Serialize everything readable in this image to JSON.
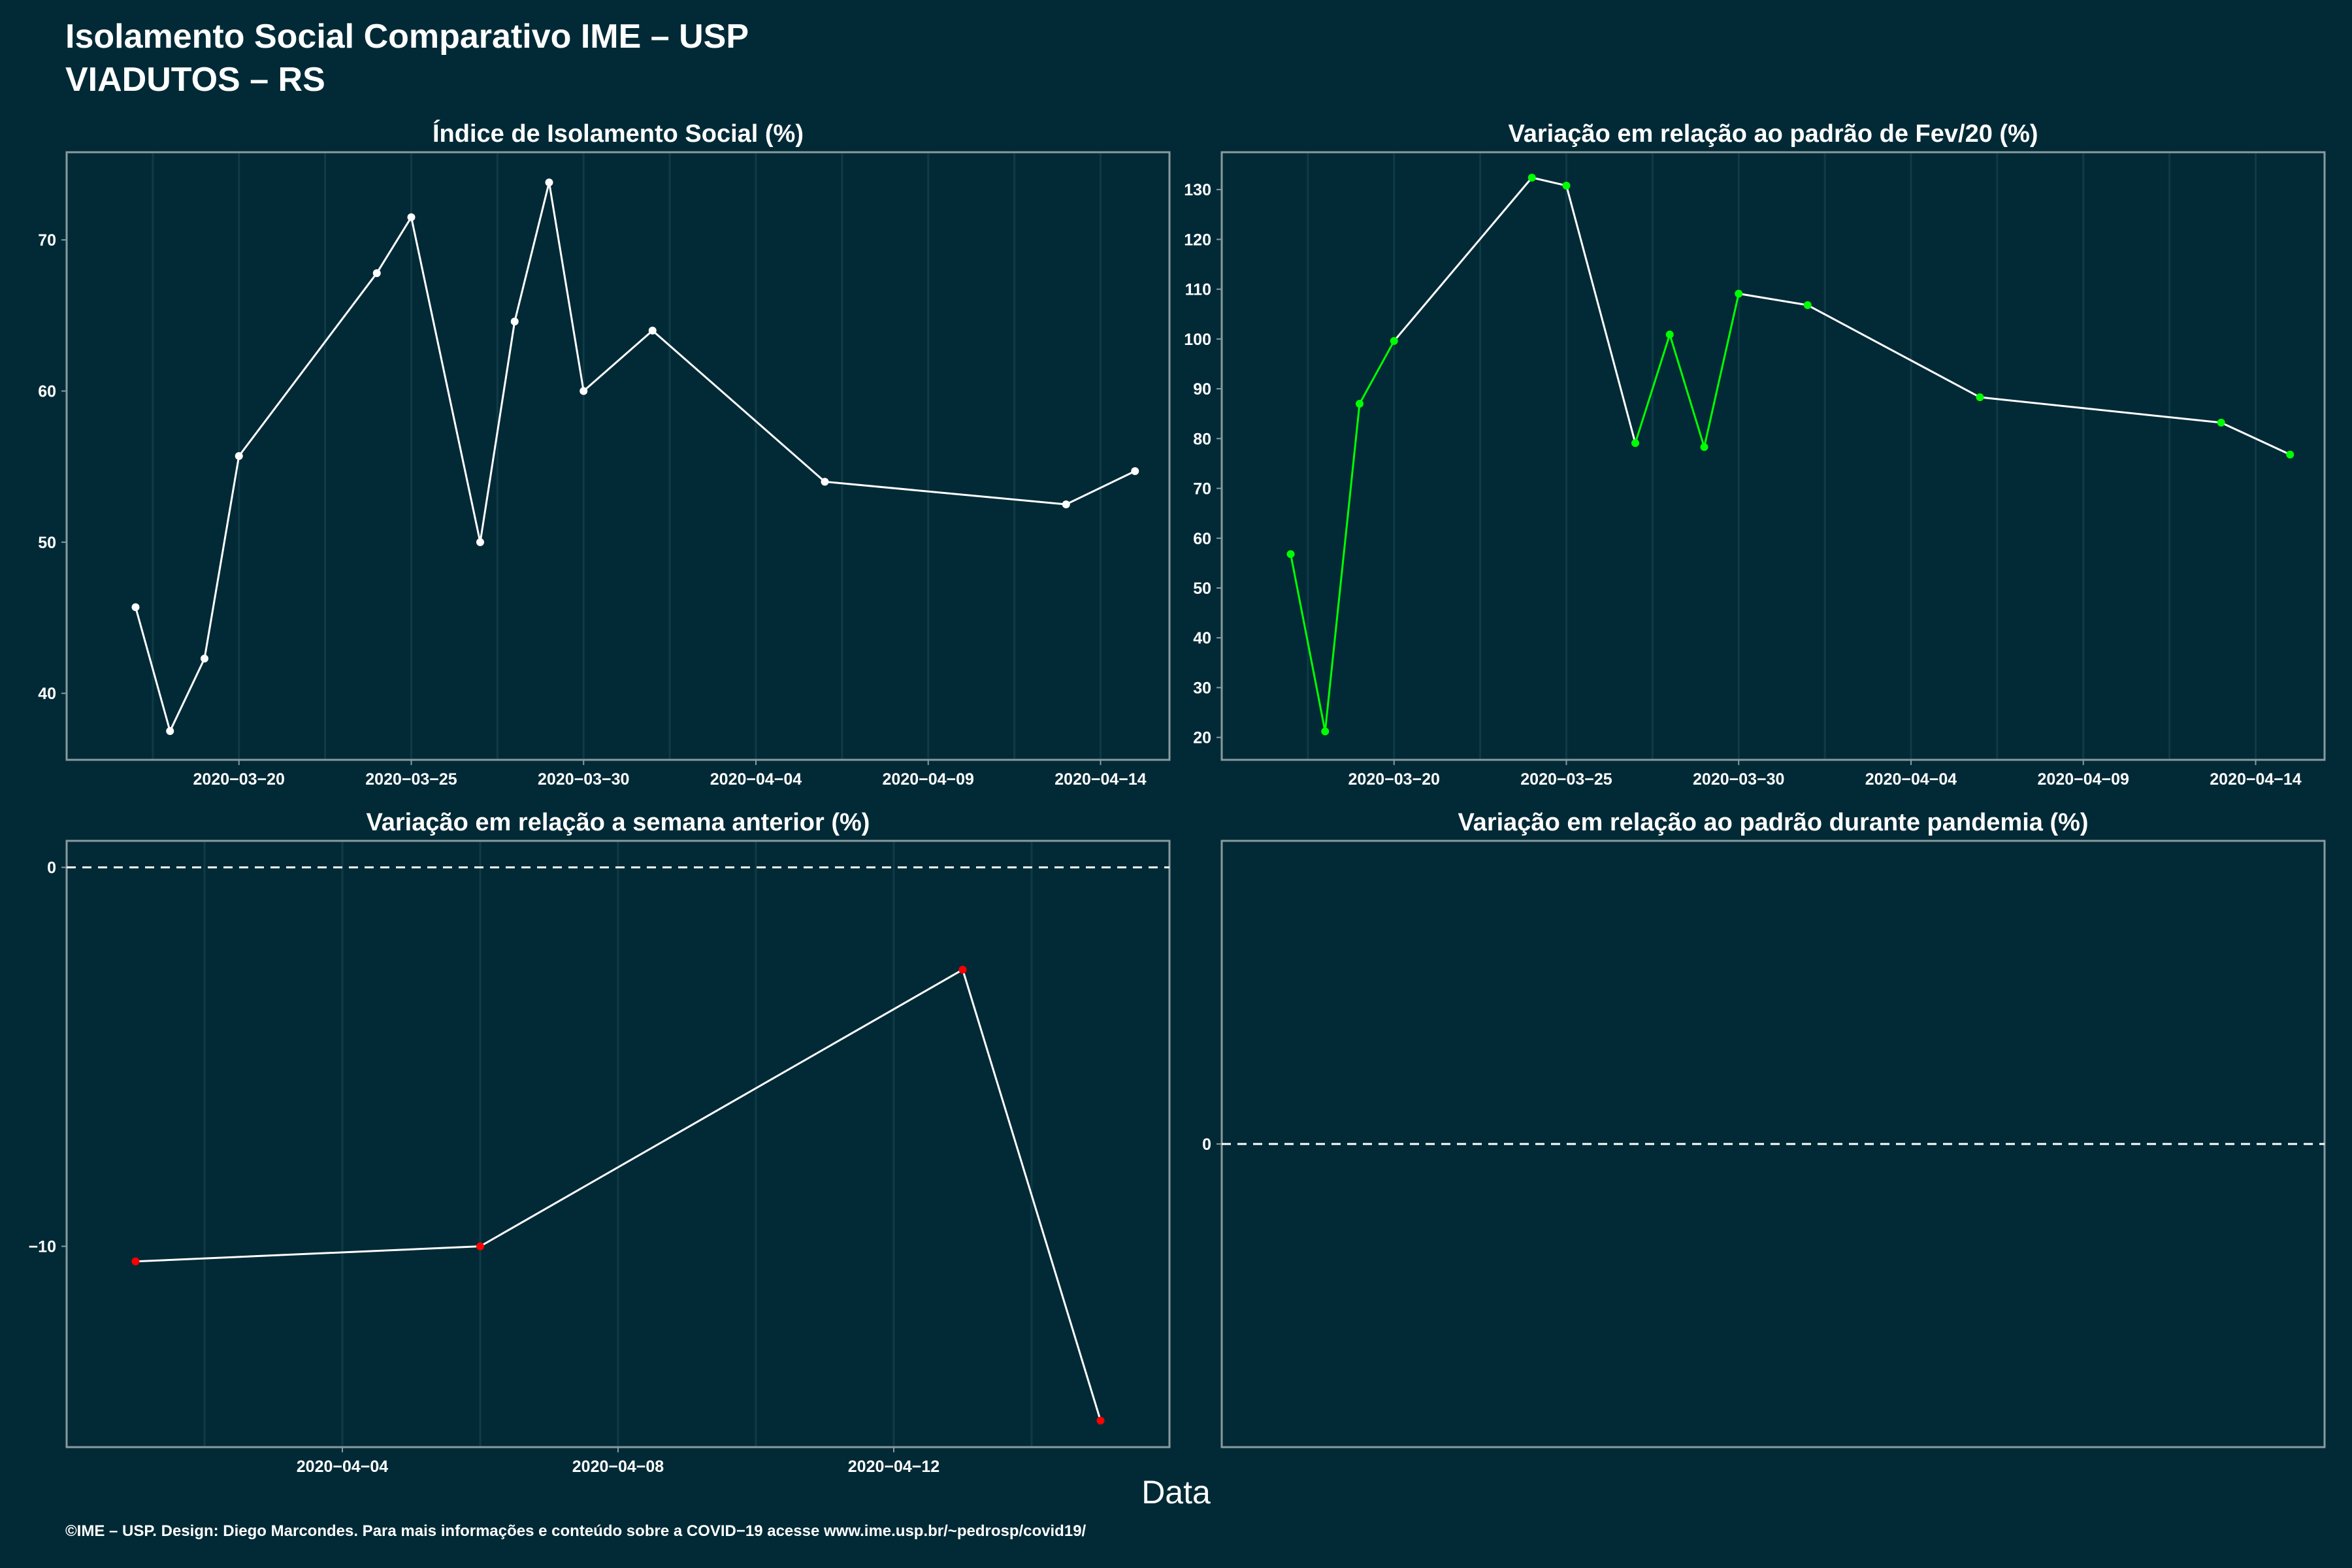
{
  "header": {
    "title_line1": "Isolamento Social Comparativo IME – USP",
    "title_line2": "VIADUTOS – RS"
  },
  "xaxis_title": "Data",
  "footer": "©IME – USP. Design: Diego Marcondes. Para mais informações e conteúdo sobre a COVID−19 acesse www.ime.usp.br/~pedrosp/covid19/",
  "colors": {
    "background": "#012a36",
    "line": "#ffffff",
    "points_isolation": "#ffffff",
    "green": "#00ff00",
    "red": "#ff0000",
    "panel_border": "#8a9a9f",
    "grid": "#0f3a46"
  },
  "chart_data": [
    {
      "id": "isolamento",
      "type": "line",
      "title": "Índice de Isolamento Social (%)",
      "xlabel": "",
      "ylabel": "",
      "x_type": "date",
      "x_ticks": [
        "2020-03-20",
        "2020-03-25",
        "2020-03-30",
        "2020-04-04",
        "2020-04-09",
        "2020-04-14"
      ],
      "y_ticks": [
        40,
        50,
        60,
        70
      ],
      "xlim": [
        "2020-03-15",
        "2020-04-16"
      ],
      "ylim": [
        35.6,
        75.8
      ],
      "grid": true,
      "series": [
        {
          "color": "#ffffff",
          "points": [
            {
              "x": "2020-03-17",
              "y": 45.7
            },
            {
              "x": "2020-03-18",
              "y": 37.5
            },
            {
              "x": "2020-03-19",
              "y": 42.3
            },
            {
              "x": "2020-03-20",
              "y": 55.7
            },
            {
              "x": "2020-03-24",
              "y": 67.8
            },
            {
              "x": "2020-03-25",
              "y": 71.5
            },
            {
              "x": "2020-03-27",
              "y": 50.0
            },
            {
              "x": "2020-03-28",
              "y": 64.6
            },
            {
              "x": "2020-03-29",
              "y": 73.8
            },
            {
              "x": "2020-03-30",
              "y": 60.0
            },
            {
              "x": "2020-04-01",
              "y": 64.0
            },
            {
              "x": "2020-04-06",
              "y": 54.0
            },
            {
              "x": "2020-04-13",
              "y": 52.5
            },
            {
              "x": "2020-04-15",
              "y": 54.7
            }
          ]
        }
      ]
    },
    {
      "id": "fev20",
      "type": "line",
      "title": "Variação em relação ao padrão de Fev/20 (%)",
      "xlabel": "",
      "ylabel": "",
      "x_type": "date",
      "x_ticks": [
        "2020-03-20",
        "2020-03-25",
        "2020-03-30",
        "2020-04-04",
        "2020-04-09",
        "2020-04-14"
      ],
      "y_ticks": [
        20,
        30,
        40,
        50,
        60,
        70,
        80,
        90,
        100,
        110,
        120,
        130
      ],
      "xlim": [
        "2020-03-15",
        "2020-04-16"
      ],
      "ylim": [
        15.5,
        137.5
      ],
      "grid": true,
      "segment_colors": [
        "#00ff00",
        "#00ff00",
        "#00ff00",
        "#ffffff",
        "#ffffff",
        "#ffffff",
        "#00ff00",
        "#00ff00",
        "#00ff00",
        "#ffffff",
        "#ffffff",
        "#ffffff",
        "#ffffff"
      ],
      "series": [
        {
          "color": "#00ff00",
          "points": [
            {
              "x": "2020-03-17",
              "y": 56.8
            },
            {
              "x": "2020-03-18",
              "y": 21.2
            },
            {
              "x": "2020-03-19",
              "y": 87.0
            },
            {
              "x": "2020-03-20",
              "y": 99.6
            },
            {
              "x": "2020-03-24",
              "y": 132.4
            },
            {
              "x": "2020-03-25",
              "y": 130.8
            },
            {
              "x": "2020-03-27",
              "y": 79.1
            },
            {
              "x": "2020-03-28",
              "y": 100.9
            },
            {
              "x": "2020-03-29",
              "y": 78.3
            },
            {
              "x": "2020-03-30",
              "y": 109.1
            },
            {
              "x": "2020-04-01",
              "y": 106.8
            },
            {
              "x": "2020-04-06",
              "y": 88.3
            },
            {
              "x": "2020-04-13",
              "y": 83.2
            },
            {
              "x": "2020-04-15",
              "y": 76.8
            }
          ]
        }
      ]
    },
    {
      "id": "semana",
      "type": "line",
      "title": "Variação em relação a semana anterior (%)",
      "xlabel": "",
      "ylabel": "",
      "x_type": "date",
      "x_ticks": [
        "2020-04-04",
        "2020-04-08",
        "2020-04-12"
      ],
      "y_ticks": [
        -10,
        0
      ],
      "y_tick_labels": [
        "−10",
        "0"
      ],
      "xlim": [
        "2020-03-31",
        "2020-04-16"
      ],
      "ylim": [
        -15.3,
        0.7
      ],
      "grid": true,
      "reference_line": 0,
      "series": [
        {
          "color": "#ff0000",
          "points": [
            {
              "x": "2020-04-01",
              "y": -10.4
            },
            {
              "x": "2020-04-06",
              "y": -10.0
            },
            {
              "x": "2020-04-13",
              "y": -2.7
            },
            {
              "x": "2020-04-15",
              "y": -14.6
            }
          ]
        }
      ]
    },
    {
      "id": "pandemia",
      "type": "line",
      "title": "Variação em relação ao padrão durante pandemia (%)",
      "xlabel": "",
      "ylabel": "",
      "y_ticks": [
        0
      ],
      "ylim": [
        -1,
        1
      ],
      "grid": false,
      "reference_line": 0,
      "series": []
    }
  ]
}
